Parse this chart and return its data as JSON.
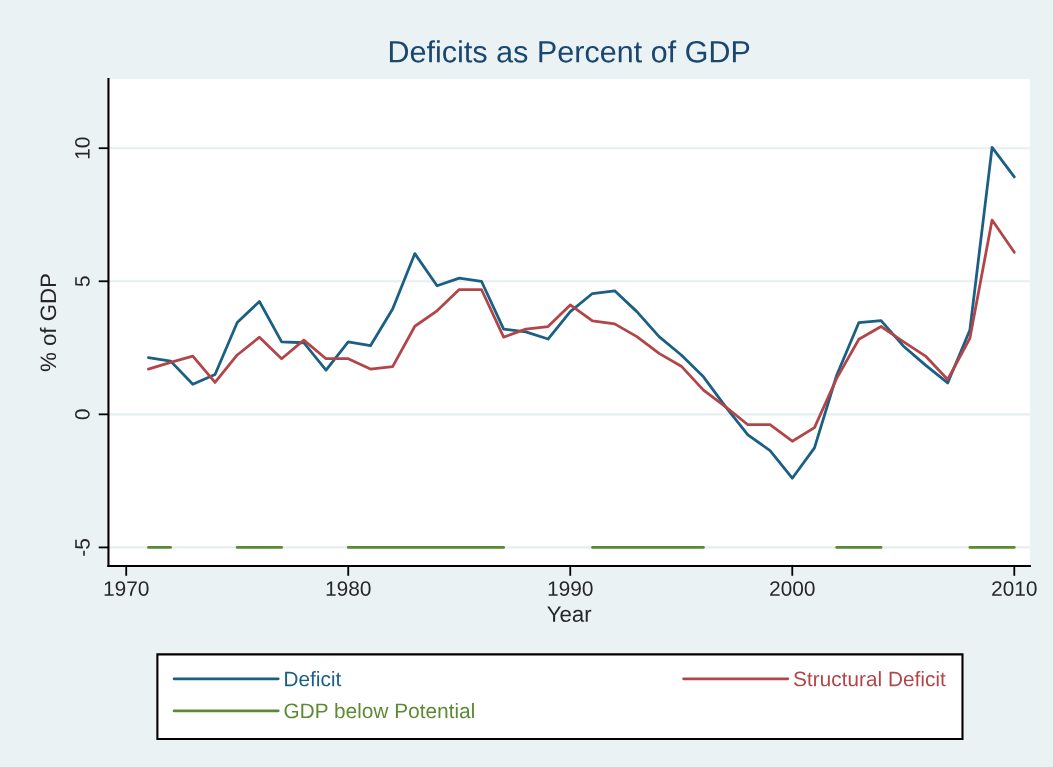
{
  "chart_data": {
    "type": "line",
    "title": "Deficits as Percent of GDP",
    "xlabel": "Year",
    "ylabel": "% of GDP",
    "x": [
      1971,
      1972,
      1973,
      1974,
      1975,
      1976,
      1977,
      1978,
      1979,
      1980,
      1981,
      1982,
      1983,
      1984,
      1985,
      1986,
      1987,
      1988,
      1989,
      1990,
      1991,
      1992,
      1993,
      1994,
      1995,
      1996,
      1997,
      1998,
      1999,
      2000,
      2001,
      2002,
      2003,
      2004,
      2005,
      2006,
      2007,
      2008,
      2009,
      2010
    ],
    "series": [
      {
        "name": "Deficit",
        "color": "#1a5f84",
        "values": [
          2.13,
          2.0,
          1.13,
          1.5,
          3.45,
          4.24,
          2.72,
          2.69,
          1.66,
          2.72,
          2.58,
          3.96,
          6.04,
          4.83,
          5.12,
          5.0,
          3.2,
          3.1,
          2.83,
          3.86,
          4.54,
          4.64,
          3.86,
          2.92,
          2.23,
          1.41,
          0.28,
          -0.77,
          -1.36,
          -2.4,
          -1.26,
          1.47,
          3.45,
          3.52,
          2.57,
          1.85,
          1.18,
          3.17,
          10.03,
          8.92
        ]
      },
      {
        "name": "Structural Deficit",
        "color": "#b24548",
        "values": [
          1.7,
          1.95,
          2.19,
          1.2,
          2.23,
          2.9,
          2.09,
          2.79,
          2.09,
          2.09,
          1.7,
          1.79,
          3.31,
          3.89,
          4.69,
          4.69,
          2.9,
          3.2,
          3.3,
          4.11,
          3.51,
          3.4,
          2.92,
          2.29,
          1.81,
          0.91,
          0.28,
          -0.39,
          -0.39,
          -1.01,
          -0.5,
          1.35,
          2.82,
          3.3,
          2.73,
          2.19,
          1.31,
          2.86,
          7.3,
          6.09
        ]
      },
      {
        "name": "GDP below Potential",
        "color": "#5b8a32",
        "values": [
          -5,
          -5,
          null,
          null,
          -5,
          -5,
          -5,
          null,
          null,
          -5,
          -5,
          -5,
          -5,
          -5,
          -5,
          -5,
          -5,
          null,
          null,
          null,
          -5,
          -5,
          -5,
          -5,
          -5,
          -5,
          null,
          null,
          null,
          null,
          null,
          -5,
          -5,
          -5,
          null,
          null,
          null,
          -5,
          -5,
          -5
        ]
      }
    ],
    "xlim": [
      1969.2,
      2010.7
    ],
    "ylim": [
      -5.7,
      12.6
    ],
    "xticks": [
      1970,
      1980,
      1990,
      2000,
      2010
    ],
    "yticks": [
      -5,
      0,
      5,
      10
    ],
    "grid": "y",
    "legend": "bottom",
    "marker": "none",
    "line_style": "solid"
  }
}
